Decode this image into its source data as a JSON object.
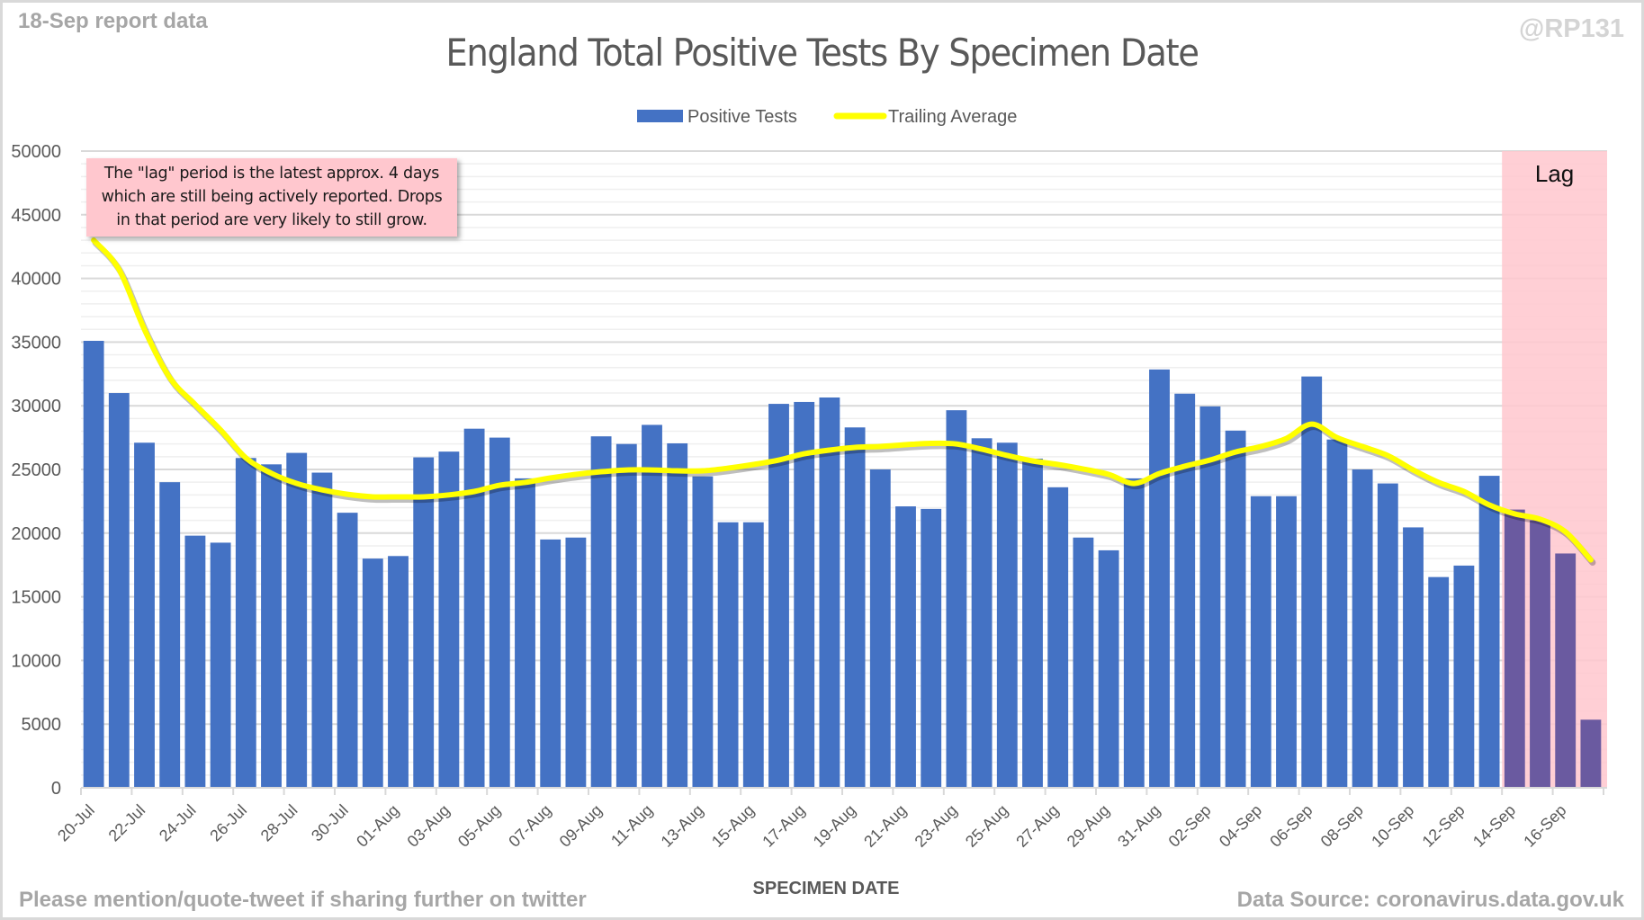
{
  "header": {
    "report_label": "18-Sep report data",
    "handle": "@RP131"
  },
  "footer": {
    "left_text": "Please mention/quote-tweet if sharing further on twitter",
    "right_text": "Data Source: coronavirus.data.gov.uk"
  },
  "annotation": {
    "lines": [
      "The \"lag\" period is the latest approx. 4 days",
      "which are still being actively reported. Drops",
      "in that period are very likely to still grow."
    ]
  },
  "colors": {
    "bar": "#4472c4",
    "bar_in_lag": "#6a5aa0",
    "trailing_average": "#ffff00",
    "lag_region": "#ffc7ce",
    "gridline_major": "#d9d9d9",
    "gridline_minor": "#efefef"
  },
  "chart_data": {
    "type": "bar",
    "title": "England Total Positive Tests By Specimen Date",
    "xlabel": "SPECIMEN DATE",
    "ylabel": "",
    "ylim": [
      0,
      50000
    ],
    "yticks": [
      0,
      5000,
      10000,
      15000,
      20000,
      25000,
      30000,
      35000,
      40000,
      45000,
      50000
    ],
    "ytick_labels": [
      "0",
      "5000",
      "10000",
      "15000",
      "20000",
      "25000",
      "30000",
      "35000",
      "40000",
      "45000",
      "50000"
    ],
    "minor_grid_step": 1000,
    "grid": true,
    "legend": {
      "placement": "top-center",
      "entries": [
        "Positive Tests",
        "Trailing Average"
      ]
    },
    "categories": [
      "20-Jul",
      "21-Jul",
      "22-Jul",
      "23-Jul",
      "24-Jul",
      "25-Jul",
      "26-Jul",
      "27-Jul",
      "28-Jul",
      "29-Jul",
      "30-Jul",
      "31-Jul",
      "01-Aug",
      "02-Aug",
      "03-Aug",
      "04-Aug",
      "05-Aug",
      "06-Aug",
      "07-Aug",
      "08-Aug",
      "09-Aug",
      "10-Aug",
      "11-Aug",
      "12-Aug",
      "13-Aug",
      "14-Aug",
      "15-Aug",
      "16-Aug",
      "17-Aug",
      "18-Aug",
      "19-Aug",
      "20-Aug",
      "21-Aug",
      "22-Aug",
      "23-Aug",
      "24-Aug",
      "25-Aug",
      "26-Aug",
      "27-Aug",
      "28-Aug",
      "29-Aug",
      "30-Aug",
      "31-Aug",
      "01-Sep",
      "02-Sep",
      "03-Sep",
      "04-Sep",
      "05-Sep",
      "06-Sep",
      "07-Sep",
      "08-Sep",
      "09-Sep",
      "10-Sep",
      "11-Sep",
      "12-Sep",
      "13-Sep",
      "14-Sep",
      "15-Sep",
      "16-Sep",
      "17-Sep"
    ],
    "xtick_labels_every": 2,
    "series": [
      {
        "name": "Positive Tests",
        "type": "bar",
        "values": [
          35100,
          31000,
          27100,
          24000,
          19800,
          19250,
          25900,
          25400,
          26300,
          24750,
          21600,
          18000,
          18200,
          25950,
          26400,
          28200,
          27500,
          24300,
          19500,
          19650,
          27600,
          27000,
          28500,
          27050,
          24450,
          20850,
          20850,
          30150,
          30300,
          30650,
          28300,
          25000,
          22100,
          21900,
          29650,
          27450,
          27100,
          25850,
          23600,
          19650,
          18650,
          24300,
          32850,
          30950,
          29950,
          28050,
          22900,
          22900,
          32300,
          27350,
          25000,
          23900,
          20450,
          16550,
          17450,
          24500,
          21850,
          21000,
          18400,
          5350
        ]
      },
      {
        "name": "Trailing Average",
        "type": "line",
        "values": [
          43000,
          40700,
          36000,
          32200,
          30100,
          28100,
          25900,
          24700,
          23900,
          23400,
          23050,
          22850,
          22850,
          22850,
          23000,
          23270,
          23760,
          23980,
          24330,
          24610,
          24820,
          24960,
          24960,
          24890,
          24890,
          25100,
          25390,
          25740,
          26230,
          26520,
          26730,
          26800,
          26940,
          27050,
          27000,
          26590,
          26100,
          25670,
          25390,
          25030,
          24610,
          23900,
          24680,
          25250,
          25740,
          26370,
          26800,
          27430,
          28560,
          27500,
          26800,
          26090,
          24960,
          23980,
          23270,
          22210,
          21510,
          21090,
          20100,
          17900
        ]
      }
    ],
    "shaded_region": {
      "label": "Lag",
      "from": "14-Sep",
      "to": "17-Sep"
    }
  }
}
